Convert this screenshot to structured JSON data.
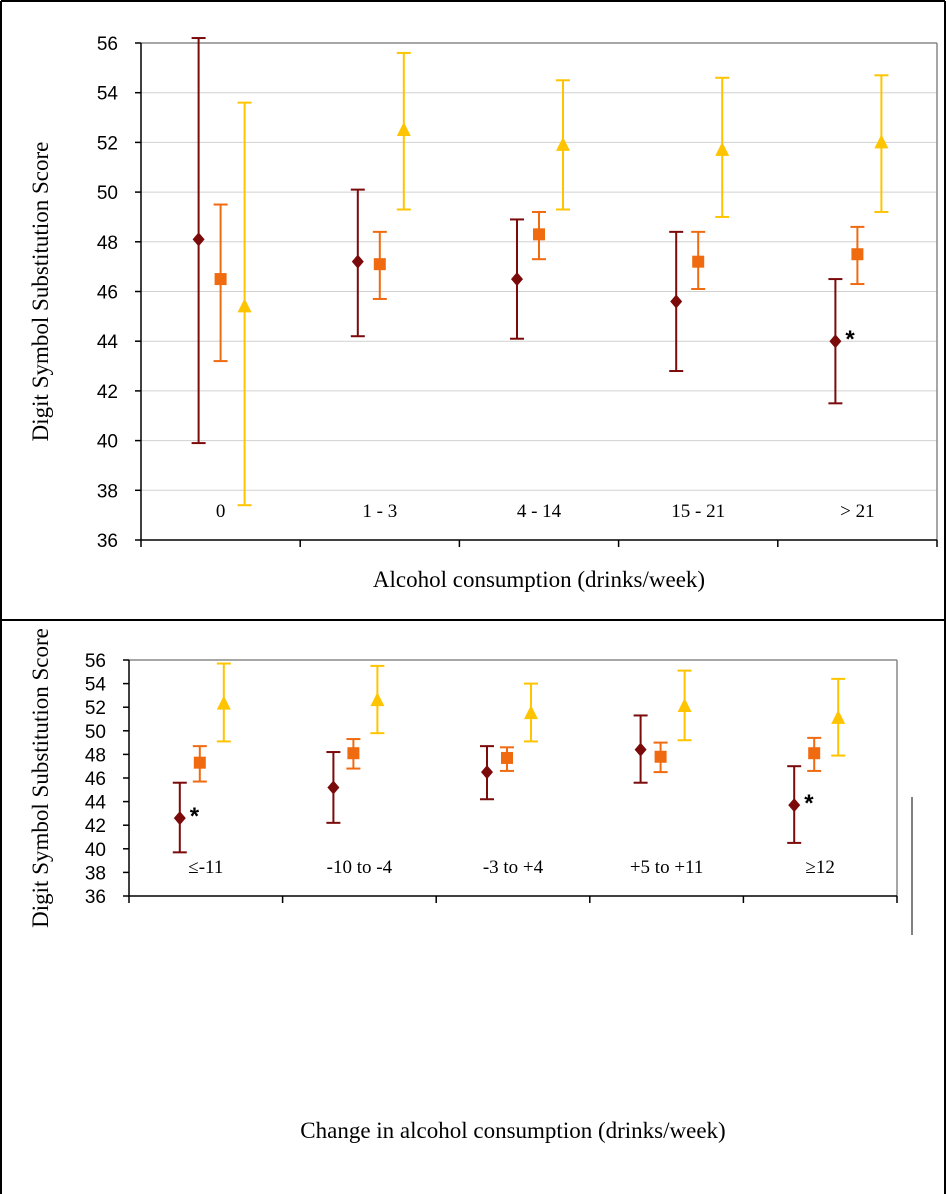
{
  "chart_data": [
    {
      "type": "scatter",
      "subtype": "error-bar",
      "xlabel": "Alcohol consumption (drinks/week)",
      "ylabel": "Digit Symbol Substitution Score",
      "ylim": [
        36,
        56
      ],
      "yticks": [
        "36",
        "38",
        "40",
        "42",
        "44",
        "46",
        "48",
        "50",
        "52",
        "54",
        "56"
      ],
      "categories": [
        "0",
        "1 - 3",
        "4 - 14",
        "15 - 21",
        "> 21"
      ],
      "grid": true,
      "legend": "none",
      "series": [
        {
          "marker": "diamond",
          "color": "#7B0A0A",
          "values": [
            48.1,
            47.2,
            46.5,
            45.6,
            44.0
          ],
          "lower": [
            39.9,
            44.2,
            44.1,
            42.8,
            41.5
          ],
          "upper": [
            56.2,
            50.1,
            48.9,
            48.4,
            46.5
          ]
        },
        {
          "marker": "square",
          "color": "#F06A10",
          "values": [
            46.5,
            47.1,
            48.3,
            47.2,
            47.5
          ],
          "lower": [
            43.2,
            45.7,
            47.3,
            46.1,
            46.3
          ],
          "upper": [
            49.5,
            48.4,
            49.2,
            48.4,
            48.6
          ]
        },
        {
          "marker": "triangle",
          "color": "#FFC400",
          "values": [
            45.4,
            52.5,
            51.9,
            51.7,
            52.0
          ],
          "lower": [
            37.4,
            49.3,
            49.3,
            49.0,
            49.2
          ],
          "upper": [
            53.6,
            55.6,
            54.5,
            54.6,
            54.7
          ]
        }
      ],
      "annotations": [
        {
          "text": "*",
          "category_index": 4,
          "series_index": 0
        }
      ]
    },
    {
      "type": "scatter",
      "subtype": "error-bar",
      "xlabel": "Change in alcohol consumption (drinks/week)",
      "ylabel": "Digit Symbol Substitution Score",
      "ylim": [
        36,
        56
      ],
      "yticks": [
        "36",
        "38",
        "40",
        "42",
        "44",
        "46",
        "48",
        "50",
        "52",
        "54",
        "56"
      ],
      "categories": [
        "≤-11",
        "-10 to -4",
        "-3 to +4",
        "+5 to +11",
        "≥12"
      ],
      "grid": false,
      "legend": "none",
      "series": [
        {
          "marker": "diamond",
          "color": "#7B0A0A",
          "values": [
            42.6,
            45.2,
            46.5,
            48.4,
            43.7
          ],
          "lower": [
            39.7,
            42.2,
            44.2,
            45.6,
            40.5
          ],
          "upper": [
            45.6,
            48.2,
            48.7,
            51.3,
            47.0
          ]
        },
        {
          "marker": "square",
          "color": "#F06A10",
          "values": [
            47.3,
            48.1,
            47.7,
            47.8,
            48.1
          ],
          "lower": [
            45.7,
            46.8,
            46.6,
            46.5,
            46.6
          ],
          "upper": [
            48.7,
            49.3,
            48.6,
            49.0,
            49.4
          ]
        },
        {
          "marker": "triangle",
          "color": "#FFC400",
          "values": [
            52.3,
            52.6,
            51.5,
            52.1,
            51.1
          ],
          "lower": [
            49.1,
            49.8,
            49.1,
            49.2,
            47.9
          ],
          "upper": [
            55.7,
            55.5,
            54.0,
            55.1,
            54.4
          ]
        }
      ],
      "annotations": [
        {
          "text": "*",
          "category_index": 0,
          "series_index": 0
        },
        {
          "text": "*",
          "category_index": 4,
          "series_index": 0
        }
      ]
    }
  ]
}
